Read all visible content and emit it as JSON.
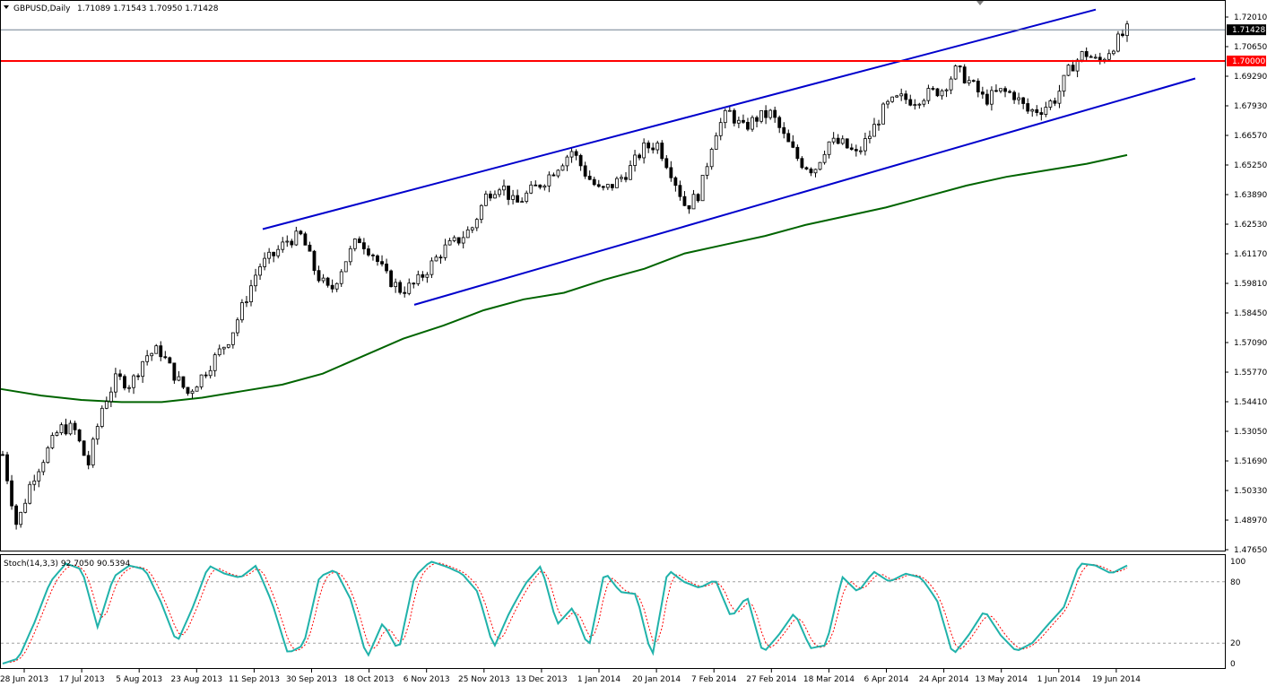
{
  "header": {
    "symbol_label": "GBPUSD,Daily",
    "ohlc_label": "1.71089 1.71543 1.70950 1.71428"
  },
  "stoch_header": {
    "label": "Stoch(14,3,3) 92.7050 90.5394"
  },
  "colors": {
    "bull_candle": "#ffffff",
    "bear_candle": "#000000",
    "channel": "#0000cc",
    "moving_average": "#006400",
    "level_line": "#ff0000",
    "current_price_line": "#708090",
    "stoch_main": "#20b2aa",
    "stoch_signal": "#ff0000"
  },
  "chart_data": {
    "type": "candlestick",
    "symbol": "GBPUSD",
    "timeframe": "Daily",
    "last_ohlc": {
      "open": 1.71089,
      "high": 1.71543,
      "low": 1.7095,
      "close": 1.71428
    },
    "ylim": [
      1.4765,
      1.7255
    ],
    "price_ticks": [
      "1.72010",
      "1.70650",
      "1.69290",
      "1.67930",
      "1.66570",
      "1.65250",
      "1.63890",
      "1.62530",
      "1.61170",
      "1.59810",
      "1.58450",
      "1.57090",
      "1.55770",
      "1.54410",
      "1.53050",
      "1.51690",
      "1.50330",
      "1.48970",
      "1.47650"
    ],
    "current_price_label": "1.71428",
    "level_label": "1.70000",
    "level_value": 1.7,
    "date_ticks": [
      "28 Jun 2013",
      "17 Jul 2013",
      "5 Aug 2013",
      "23 Aug 2013",
      "11 Sep 2013",
      "30 Sep 2013",
      "18 Oct 2013",
      "6 Nov 2013",
      "25 Nov 2013",
      "13 Dec 2013",
      "1 Jan 2014",
      "20 Jan 2014",
      "7 Feb 2014",
      "27 Feb 2014",
      "18 Mar 2014",
      "6 Apr 2014",
      "24 Apr 2014",
      "13 May 2014",
      "1 Jun 2014",
      "19 Jun 2014"
    ],
    "approx_close_path": [
      1.52,
      1.487,
      1.508,
      1.52,
      1.532,
      1.532,
      1.515,
      1.542,
      1.555,
      1.552,
      1.565,
      1.568,
      1.557,
      1.548,
      1.556,
      1.565,
      1.574,
      1.59,
      1.606,
      1.611,
      1.618,
      1.62,
      1.603,
      1.594,
      1.608,
      1.619,
      1.612,
      1.601,
      1.595,
      1.598,
      1.606,
      1.614,
      1.618,
      1.624,
      1.639,
      1.644,
      1.634,
      1.64,
      1.645,
      1.652,
      1.659,
      1.648,
      1.64,
      1.644,
      1.65,
      1.66,
      1.662,
      1.649,
      1.633,
      1.64,
      1.667,
      1.677,
      1.669,
      1.674,
      1.676,
      1.664,
      1.654,
      1.65,
      1.663,
      1.662,
      1.657,
      1.667,
      1.679,
      1.683,
      1.682,
      1.685,
      1.687,
      1.696,
      1.69,
      1.682,
      1.686,
      1.685,
      1.677,
      1.678,
      1.683,
      1.697,
      1.704,
      1.699,
      1.707,
      1.714
    ],
    "channel_upper": {
      "from": [
        "11 Sep 2013",
        1.6231
      ],
      "to": [
        "19 Jun 2014",
        1.7235
      ]
    },
    "channel_lower": {
      "from": [
        "6 Nov 2013",
        1.5885
      ],
      "to": [
        "1 Jul 2014",
        1.692
      ]
    },
    "moving_average_path": [
      1.55,
      1.547,
      1.545,
      1.544,
      1.544,
      1.546,
      1.549,
      1.552,
      1.557,
      1.565,
      1.573,
      1.579,
      1.586,
      1.591,
      1.594,
      1.6,
      1.605,
      1.612,
      1.616,
      1.62,
      1.625,
      1.629,
      1.633,
      1.638,
      1.643,
      1.647,
      1.65,
      1.653,
      1.657
    ],
    "stochastic": {
      "name": "Stoch(14,3,3)",
      "main": 92.705,
      "signal": 90.5394,
      "ylim": [
        0,
        100
      ],
      "ticks": [
        "100",
        "80",
        "20",
        "0"
      ],
      "levels": [
        80,
        20
      ],
      "approx_main_path": [
        0,
        5,
        40,
        80,
        98,
        92,
        35,
        85,
        96,
        92,
        60,
        20,
        55,
        96,
        88,
        84,
        96,
        60,
        10,
        18,
        85,
        92,
        62,
        5,
        40,
        12,
        85,
        100,
        95,
        88,
        70,
        15,
        50,
        78,
        96,
        38,
        55,
        15,
        90,
        70,
        68,
        5,
        92,
        80,
        74,
        82,
        45,
        66,
        10,
        28,
        50,
        15,
        18,
        85,
        70,
        90,
        80,
        88,
        84,
        62,
        8,
        28,
        52,
        28,
        12,
        20,
        38,
        55,
        98,
        96,
        88,
        96
      ]
    }
  }
}
